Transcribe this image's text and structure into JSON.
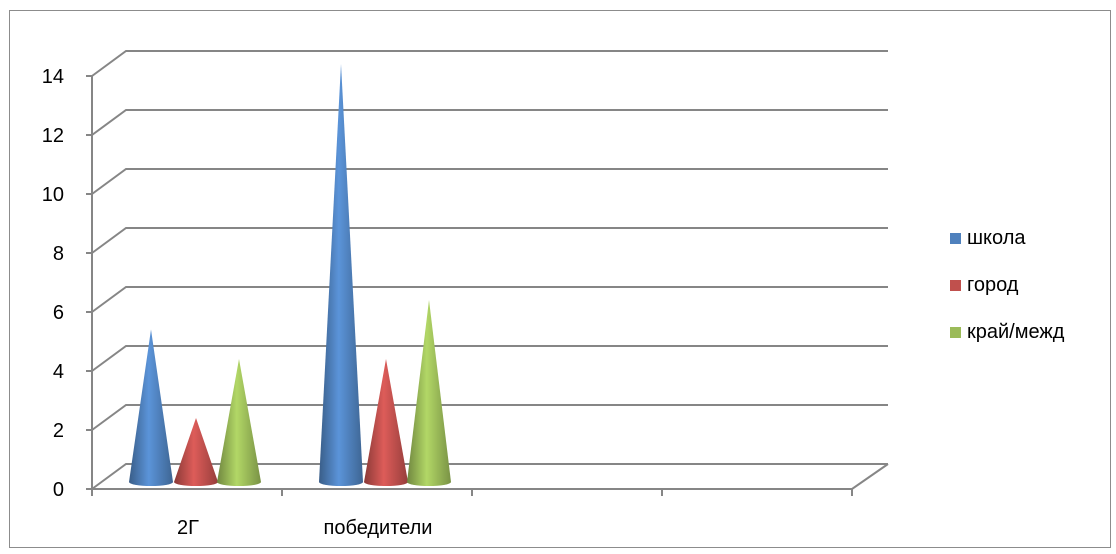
{
  "chart_data": {
    "type": "bar",
    "subtype": "3d-cone",
    "categories": [
      "2Г",
      "победители"
    ],
    "series": [
      {
        "name": "школа",
        "values": [
          5,
          14
        ],
        "color": "#4f81bd"
      },
      {
        "name": "город",
        "values": [
          2,
          4
        ],
        "color": "#c0504d"
      },
      {
        "name": "край/межд",
        "values": [
          4,
          6
        ],
        "color": "#9bbb59"
      }
    ],
    "ylim": [
      0,
      14
    ],
    "yticks": [
      "0",
      "2",
      "4",
      "6",
      "8",
      "10",
      "12",
      "14"
    ],
    "grid": true,
    "legend": "right"
  }
}
